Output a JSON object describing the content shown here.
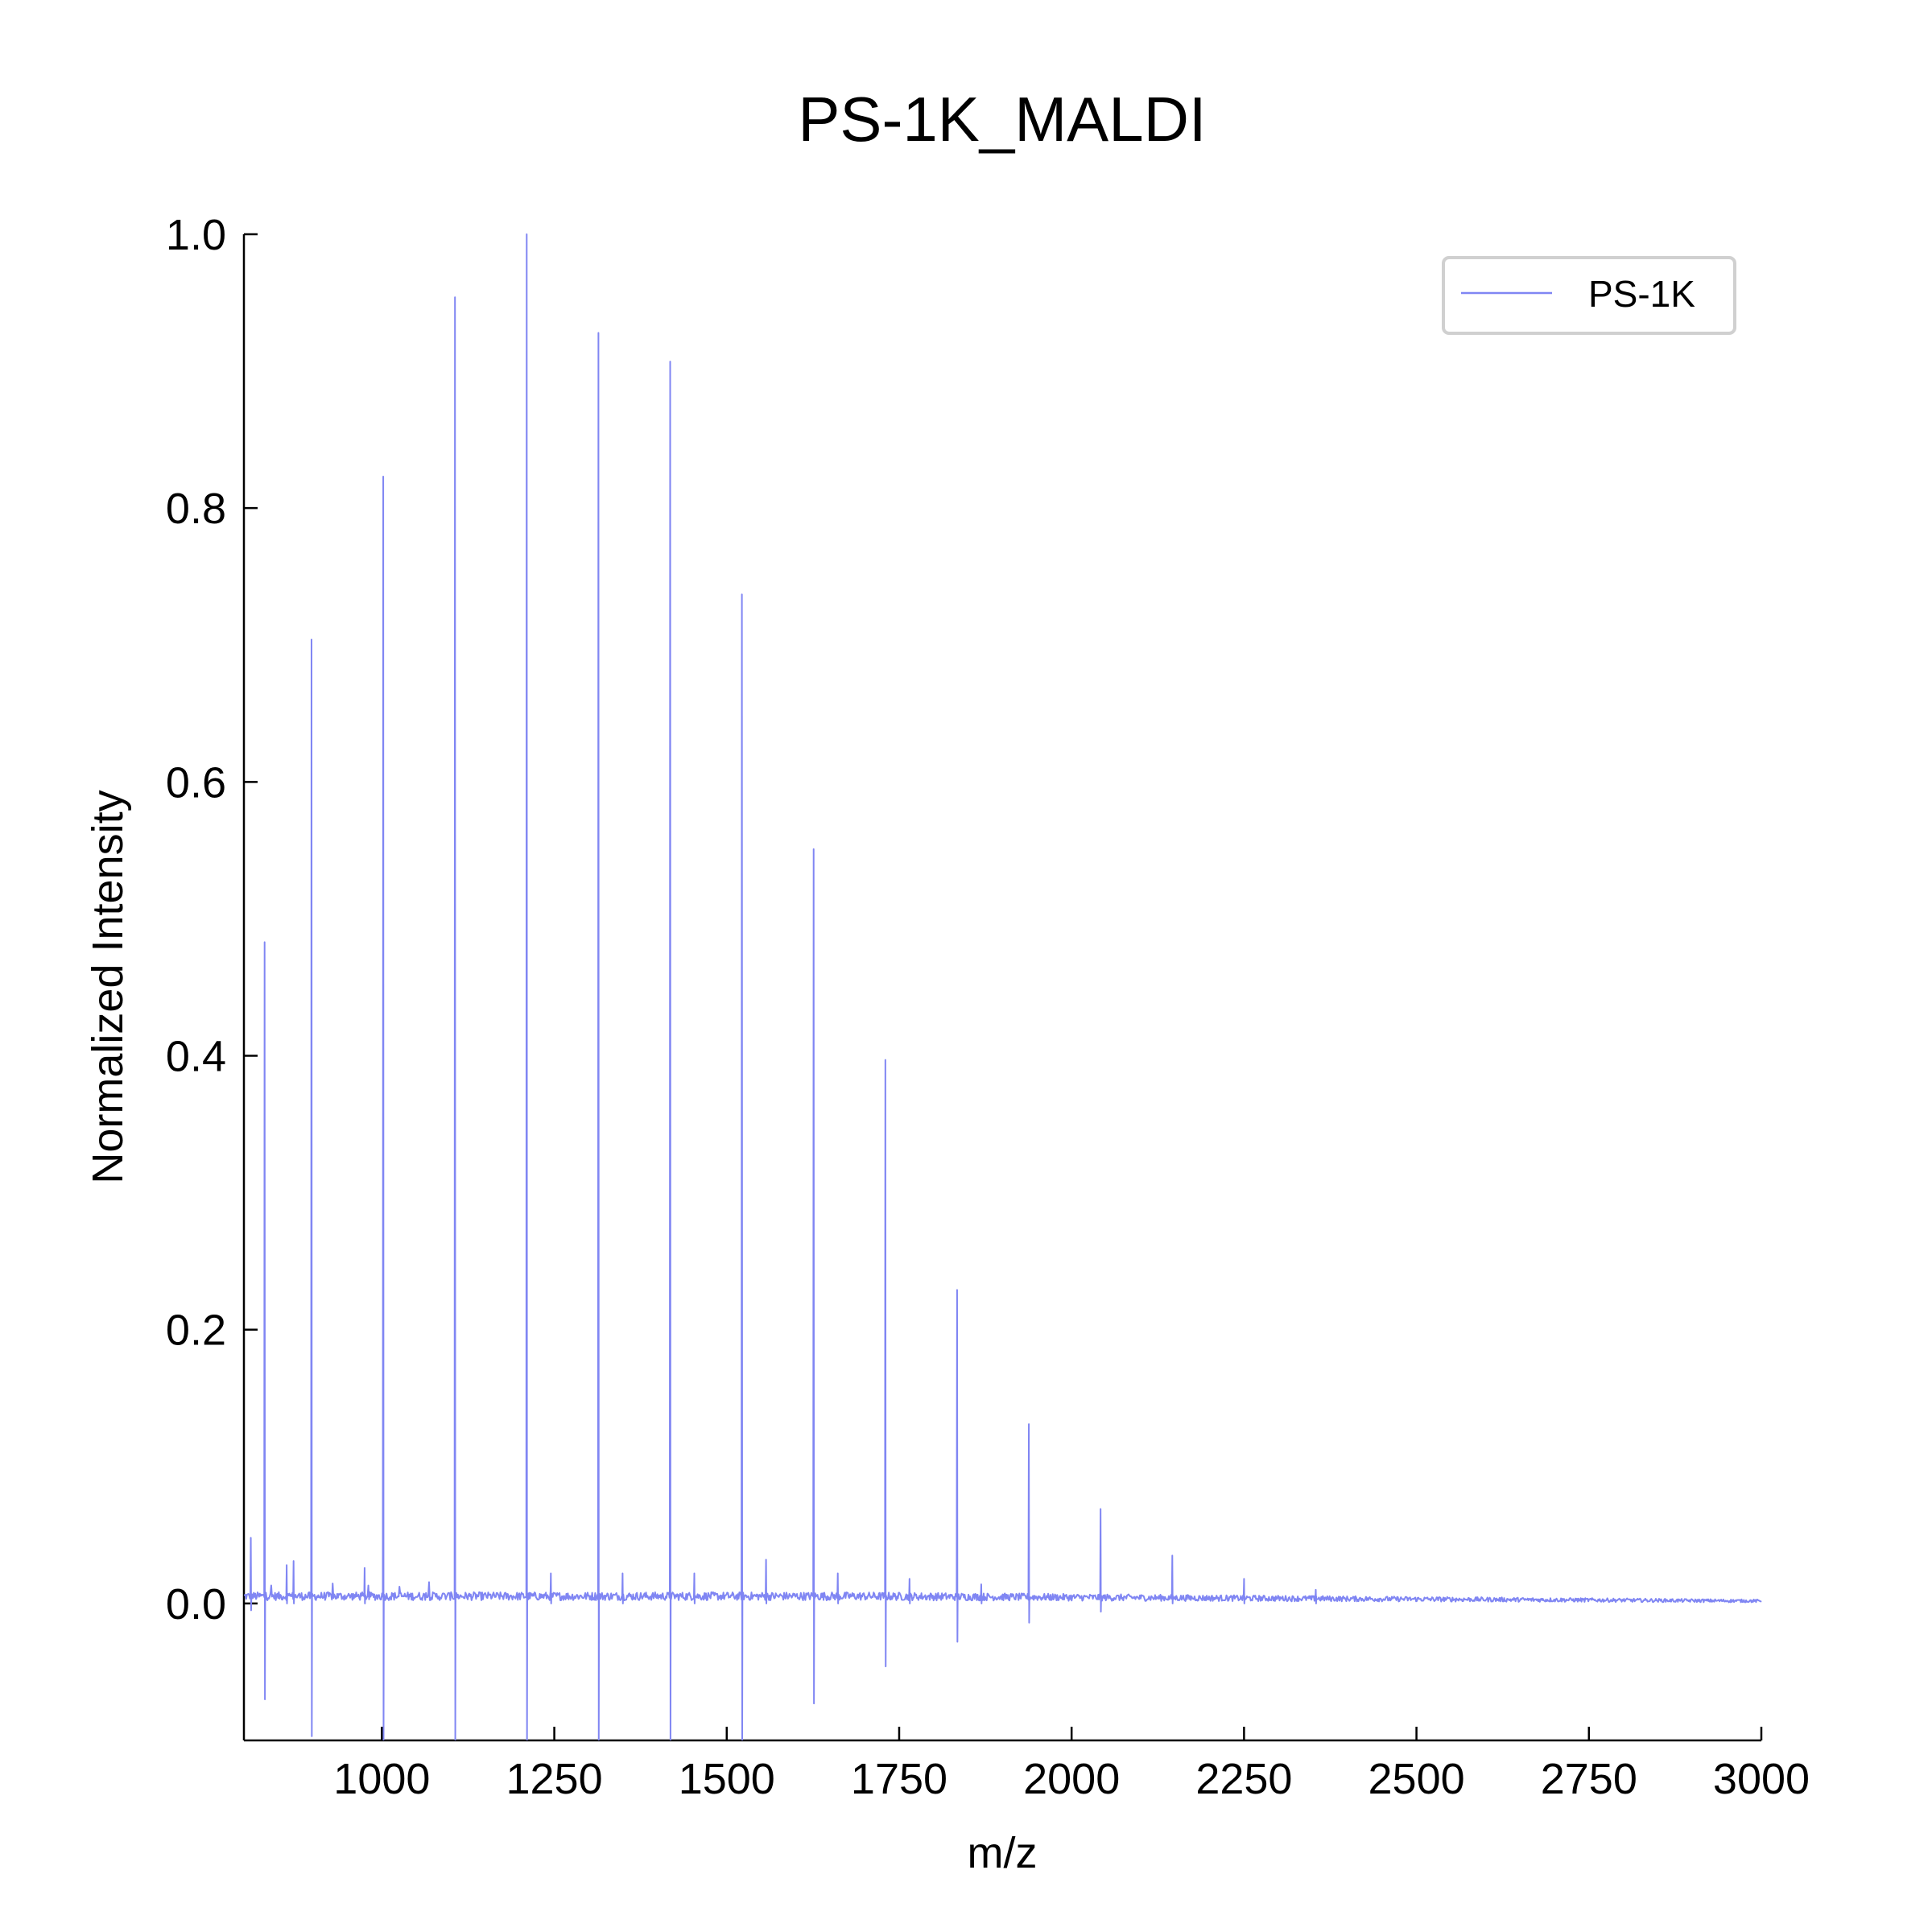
{
  "chart_data": {
    "type": "line",
    "title": "PS-1K_MALDI",
    "xlabel": "m/z",
    "ylabel": "Normalized Intensity",
    "xlim": [
      800,
      3000
    ],
    "ylim": [
      -0.1,
      1.0
    ],
    "xticks": [
      1000,
      1250,
      1500,
      1750,
      2000,
      2250,
      2500,
      2750,
      3000
    ],
    "xtick_labels": [
      "1000",
      "1250",
      "1500",
      "1750",
      "2000",
      "2250",
      "2500",
      "2750",
      "3000"
    ],
    "yticks": [
      0.0,
      0.2,
      0.4,
      0.6,
      0.8,
      1.0
    ],
    "ytick_labels": [
      "0.0",
      "0.2",
      "0.4",
      "0.6",
      "0.8",
      "1.0"
    ],
    "legend_position": "top-right",
    "grid": false,
    "series": [
      {
        "name": "PS-1K",
        "color": "#8086f3",
        "baseline": 0.005,
        "peaks": [
          {
            "mz": 810,
            "intensity": 0.048,
            "undershoot": -0.005
          },
          {
            "mz": 830,
            "intensity": 0.483,
            "undershoot": -0.07
          },
          {
            "mz": 862,
            "intensity": 0.028,
            "undershoot": 0.0
          },
          {
            "mz": 872,
            "intensity": 0.031,
            "undershoot": 0.0
          },
          {
            "mz": 898,
            "intensity": 0.704,
            "undershoot": -0.097
          },
          {
            "mz": 975,
            "intensity": 0.026,
            "undershoot": 0.0
          },
          {
            "mz": 1002,
            "intensity": 0.823,
            "undershoot": -0.1
          },
          {
            "mz": 1106,
            "intensity": 0.954,
            "undershoot": -0.1
          },
          {
            "mz": 1210,
            "intensity": 1.0,
            "undershoot": -0.1
          },
          {
            "mz": 1245,
            "intensity": 0.022,
            "undershoot": 0.0
          },
          {
            "mz": 1314,
            "intensity": 0.928,
            "undershoot": -0.1
          },
          {
            "mz": 1349,
            "intensity": 0.022,
            "undershoot": 0.0
          },
          {
            "mz": 1418,
            "intensity": 0.907,
            "undershoot": -0.1
          },
          {
            "mz": 1453,
            "intensity": 0.022,
            "undershoot": 0.0
          },
          {
            "mz": 1522,
            "intensity": 0.737,
            "undershoot": -0.1
          },
          {
            "mz": 1557,
            "intensity": 0.032,
            "undershoot": 0.0
          },
          {
            "mz": 1626,
            "intensity": 0.551,
            "undershoot": -0.073
          },
          {
            "mz": 1661,
            "intensity": 0.022,
            "undershoot": 0.0
          },
          {
            "mz": 1730,
            "intensity": 0.397,
            "undershoot": -0.046
          },
          {
            "mz": 1765,
            "intensity": 0.018,
            "undershoot": 0.0
          },
          {
            "mz": 1834,
            "intensity": 0.229,
            "undershoot": -0.028
          },
          {
            "mz": 1869,
            "intensity": 0.014,
            "undershoot": 0.0
          },
          {
            "mz": 1938,
            "intensity": 0.131,
            "undershoot": -0.014
          },
          {
            "mz": 2042,
            "intensity": 0.069,
            "undershoot": -0.006
          },
          {
            "mz": 2146,
            "intensity": 0.035,
            "undershoot": 0.0
          },
          {
            "mz": 2250,
            "intensity": 0.018,
            "undershoot": 0.0
          },
          {
            "mz": 2354,
            "intensity": 0.01,
            "undershoot": 0.0
          }
        ]
      }
    ]
  }
}
